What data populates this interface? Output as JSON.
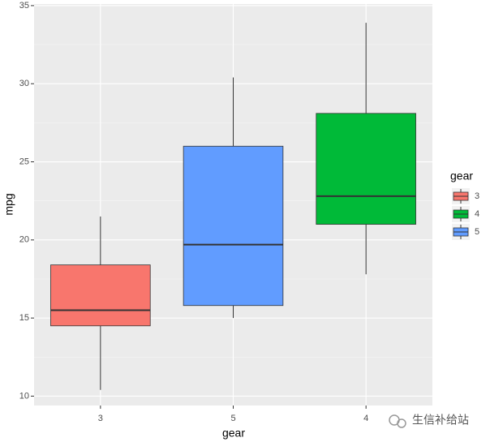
{
  "chart_data": {
    "type": "box",
    "x_label": "gear",
    "y_label": "mpg",
    "categories": [
      "3",
      "5",
      "4"
    ],
    "boxes": [
      {
        "color": "#F8766D",
        "whisker_low": 10.4,
        "q1": 14.5,
        "median": 15.5,
        "q3": 18.4,
        "whisker_high": 21.5
      },
      {
        "color": "#619CFF",
        "whisker_low": 15.0,
        "q1": 15.8,
        "median": 19.7,
        "q3": 26.0,
        "whisker_high": 30.4
      },
      {
        "color": "#00BA38",
        "whisker_low": 17.8,
        "q1": 21.0,
        "median": 22.8,
        "q3": 28.1,
        "whisker_high": 33.9
      }
    ],
    "ylim": [
      9.4,
      35.1
    ],
    "yticks": [
      10,
      15,
      20,
      25,
      30,
      35
    ],
    "grid": true,
    "legend": {
      "title": "gear",
      "position": "right",
      "entries": [
        {
          "label": "3",
          "color": "#F8766D"
        },
        {
          "label": "4",
          "color": "#00BA38"
        },
        {
          "label": "5",
          "color": "#619CFF"
        }
      ]
    },
    "watermark": "生信补给站"
  }
}
